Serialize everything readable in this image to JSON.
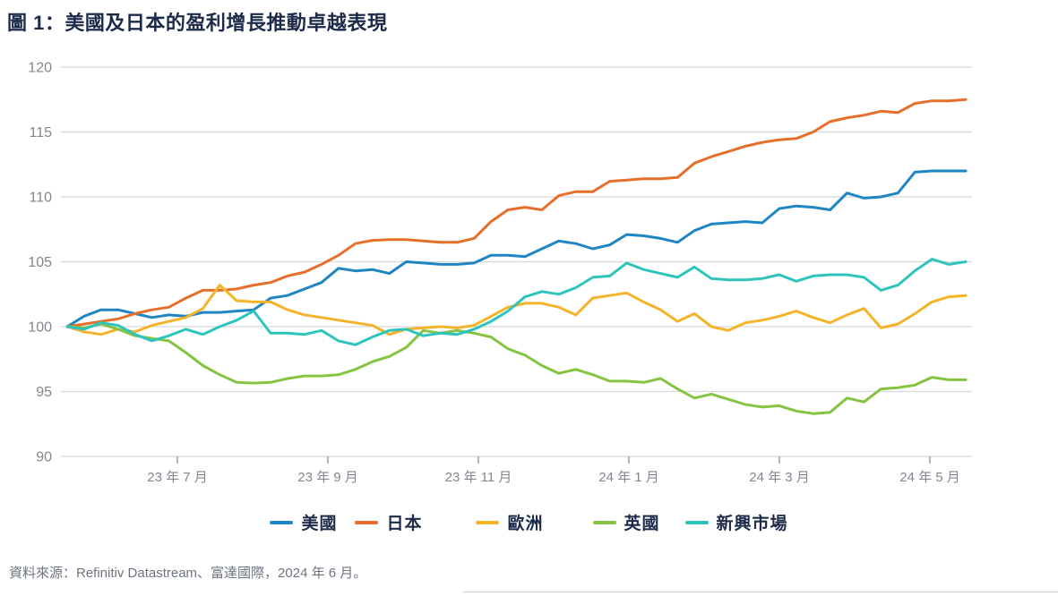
{
  "title": "圖 1：美國及日本的盈利增長推動卓越表現",
  "source_note": "資料來源：Refinitiv Datastream、富達國際，2024 年 6 月。",
  "colors": {
    "title_text": "#1c2b4a",
    "axis_text": "#82878f",
    "gridline": "#d8d8d8",
    "tick_mark": "#9aa0a8",
    "us_blue": "#1f86c3",
    "japan_orange": "#e56f2b",
    "europe_yellow": "#f5b32a",
    "uk_green": "#85c441",
    "em_teal": "#2ec4bd"
  },
  "chart_data": {
    "type": "line",
    "title": "圖 1：美國及日本的盈利增長推動卓越表現",
    "xlabel": "",
    "ylabel": "",
    "ylim": [
      90,
      120
    ],
    "y_ticks": [
      90,
      95,
      100,
      105,
      110,
      115,
      120
    ],
    "x_tick_labels": [
      "23 年 7 月",
      "23 年 9 月",
      "23 年 11 月",
      "24 年 1 月",
      "24 年 3 月",
      "24 年 5 月"
    ],
    "grid": "horizontal",
    "legend_position": "bottom",
    "x_description": "weekly index points, late May 2023 to early June 2024, rebased to 100",
    "series": [
      {
        "name": "美國",
        "color": "#1f86c3",
        "values": [
          100,
          100.8,
          101.3,
          101.3,
          101.0,
          100.7,
          100.9,
          100.8,
          101.1,
          101.1,
          101.2,
          101.3,
          102.2,
          102.4,
          102.9,
          103.4,
          104.5,
          104.3,
          104.4,
          104.1,
          105.0,
          104.9,
          104.8,
          104.8,
          104.9,
          105.5,
          105.5,
          105.4,
          106.0,
          106.6,
          106.4,
          106.0,
          106.3,
          107.1,
          107.0,
          106.8,
          106.5,
          107.4,
          107.9,
          108.0,
          108.1,
          108.0,
          109.1,
          109.3,
          109.2,
          109.0,
          110.3,
          109.9,
          110.0,
          110.3,
          111.9,
          112.0,
          112.0,
          112.0
        ]
      },
      {
        "name": "日本",
        "color": "#e56f2b",
        "values": [
          100,
          100.2,
          100.4,
          100.6,
          101.0,
          101.3,
          101.5,
          102.2,
          102.8,
          102.8,
          102.9,
          103.2,
          103.4,
          103.9,
          104.2,
          104.8,
          105.5,
          106.4,
          106.65,
          106.7,
          106.7,
          106.6,
          106.5,
          106.5,
          106.8,
          108.1,
          109.0,
          109.2,
          109.0,
          110.1,
          110.4,
          110.4,
          111.2,
          111.3,
          111.4,
          111.4,
          111.5,
          112.6,
          113.1,
          113.5,
          113.9,
          114.2,
          114.4,
          114.5,
          115.0,
          115.8,
          116.1,
          116.3,
          116.6,
          116.5,
          117.2,
          117.4,
          117.4,
          117.5
        ]
      },
      {
        "name": "歐洲",
        "color": "#f5b32a",
        "values": [
          100,
          99.6,
          99.4,
          99.8,
          99.6,
          100.1,
          100.4,
          100.7,
          101.4,
          103.2,
          102.0,
          101.9,
          101.9,
          101.3,
          100.9,
          100.7,
          100.5,
          100.3,
          100.1,
          99.4,
          99.8,
          99.9,
          100.0,
          99.9,
          100.1,
          100.8,
          101.5,
          101.8,
          101.8,
          101.5,
          100.9,
          102.2,
          102.4,
          102.6,
          101.9,
          101.3,
          100.4,
          101.0,
          100.0,
          99.7,
          100.3,
          100.5,
          100.8,
          101.2,
          100.7,
          100.3,
          100.9,
          101.4,
          99.9,
          100.2,
          101.0,
          101.9,
          102.3,
          102.4
        ]
      },
      {
        "name": "英國",
        "color": "#85c441",
        "values": [
          100,
          99.9,
          100.2,
          99.8,
          99.3,
          99.1,
          98.9,
          98.0,
          97.0,
          96.3,
          95.7,
          95.65,
          95.7,
          96.0,
          96.2,
          96.2,
          96.3,
          96.7,
          97.3,
          97.7,
          98.4,
          99.7,
          99.5,
          99.7,
          99.5,
          99.2,
          98.3,
          97.8,
          97.0,
          96.4,
          96.7,
          96.3,
          95.8,
          95.8,
          95.7,
          96.0,
          95.2,
          94.5,
          94.8,
          94.4,
          94.0,
          93.8,
          93.9,
          93.5,
          93.3,
          93.4,
          94.5,
          94.2,
          95.2,
          95.3,
          95.5,
          96.1,
          95.9,
          95.9
        ]
      },
      {
        "name": "新興市場",
        "color": "#2ec4bd",
        "values": [
          100,
          99.8,
          100.3,
          100.1,
          99.4,
          98.9,
          99.3,
          99.8,
          99.4,
          100.0,
          100.5,
          101.2,
          99.5,
          99.5,
          99.4,
          99.7,
          98.9,
          98.6,
          99.2,
          99.7,
          99.8,
          99.3,
          99.5,
          99.4,
          99.8,
          100.4,
          101.2,
          102.3,
          102.7,
          102.5,
          103.0,
          103.8,
          103.9,
          104.9,
          104.4,
          104.1,
          103.8,
          104.6,
          103.7,
          103.6,
          103.6,
          103.7,
          104.0,
          103.5,
          103.9,
          104.0,
          104.0,
          103.8,
          102.8,
          103.2,
          104.3,
          105.2,
          104.8,
          105.0
        ]
      }
    ]
  }
}
